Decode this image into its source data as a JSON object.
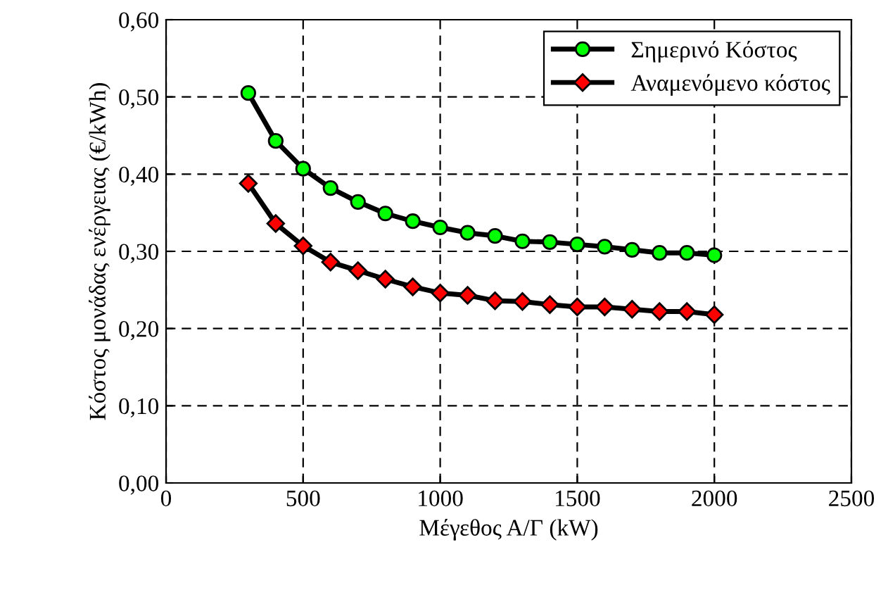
{
  "chart_data": {
    "type": "line",
    "xlabel": "Μέγεθος Α/Γ (kW)",
    "ylabel": "Κόστος μονάδας ενέργειας (€/kWh)",
    "x": [
      300,
      400,
      500,
      600,
      700,
      800,
      900,
      1000,
      1100,
      1200,
      1300,
      1400,
      1500,
      1600,
      1700,
      1800,
      1900,
      2000
    ],
    "series": [
      {
        "name": "Σημερινό Κόστος",
        "color": "#00ff00",
        "marker": "circle",
        "values": [
          0.505,
          0.443,
          0.407,
          0.382,
          0.364,
          0.349,
          0.339,
          0.331,
          0.324,
          0.32,
          0.313,
          0.312,
          0.309,
          0.306,
          0.302,
          0.298,
          0.298,
          0.295
        ]
      },
      {
        "name": "Αναμενόμενο κόστος",
        "color": "#ff0000",
        "marker": "diamond",
        "values": [
          0.388,
          0.336,
          0.307,
          0.286,
          0.275,
          0.264,
          0.254,
          0.246,
          0.243,
          0.236,
          0.235,
          0.231,
          0.228,
          0.228,
          0.225,
          0.222,
          0.222,
          0.218
        ]
      }
    ],
    "xlim": [
      0,
      2500
    ],
    "xticks": [
      0,
      500,
      1000,
      1500,
      2000,
      2500
    ],
    "ylim": [
      0,
      0.6
    ],
    "yticks": [
      {
        "value": 0,
        "label": "0,00"
      },
      {
        "value": 0.1,
        "label": "0,10"
      },
      {
        "value": 0.2,
        "label": "0,20"
      },
      {
        "value": 0.3,
        "label": "0,30"
      },
      {
        "value": 0.4,
        "label": "0,40"
      },
      {
        "value": 0.5,
        "label": "0,50"
      },
      {
        "value": 0.6,
        "label": "0,60"
      }
    ],
    "grid": true,
    "legend": "top right",
    "line_style": "solid"
  }
}
